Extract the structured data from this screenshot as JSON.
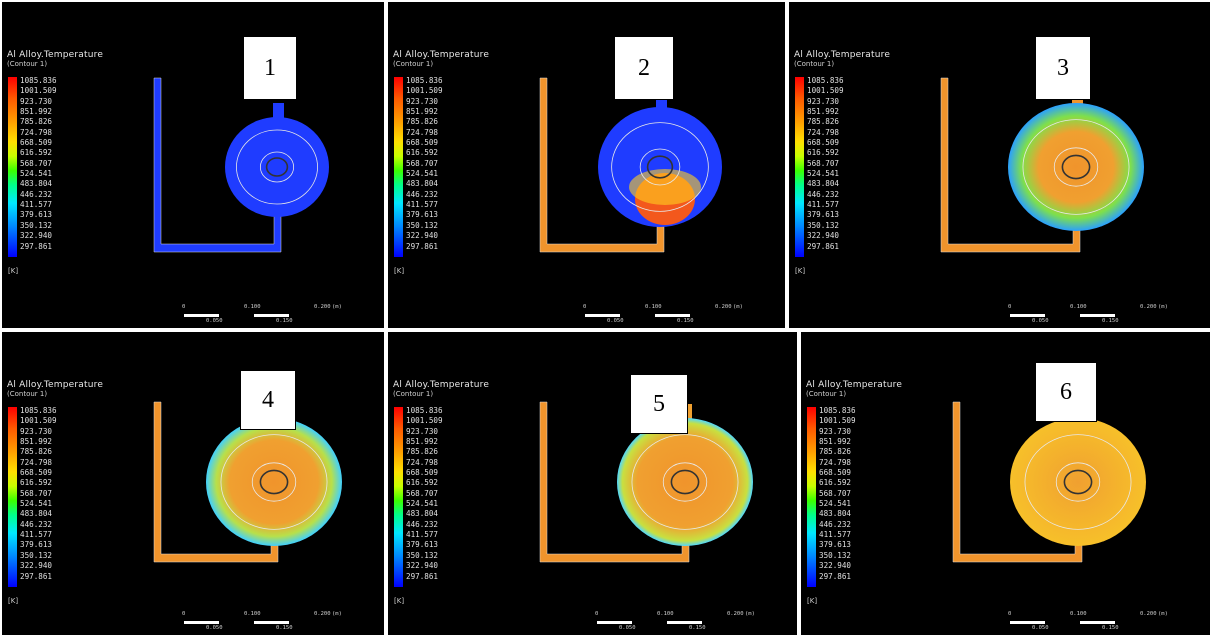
{
  "legend": {
    "title": "Al Alloy.Temperature",
    "subtitle": "(Contour 1)",
    "unit": "[K]",
    "values": [
      "1085.836",
      "1001.509",
      "923.730",
      "851.992",
      "785.826",
      "724.798",
      "668.509",
      "616.592",
      "568.707",
      "524.541",
      "483.804",
      "446.232",
      "411.577",
      "379.613",
      "350.132",
      "322.940",
      "297.861"
    ]
  },
  "scale_bar": {
    "top_labels": [
      "0",
      "0.100",
      "0.200"
    ],
    "bottom_labels": [
      "0.050",
      "0.150"
    ],
    "unit": "(m)"
  },
  "panels": [
    {
      "label": "1",
      "state": "runner-filling",
      "colors": {
        "die": "#1f3cff",
        "runner": "#1f3cff"
      }
    },
    {
      "label": "2",
      "state": "filling-start",
      "colors": {
        "die": "#1f3cff",
        "runner": "#f0942c"
      }
    },
    {
      "label": "3",
      "state": "half-filled",
      "colors": {
        "die": "#f0942c",
        "runner": "#f0942c"
      }
    },
    {
      "label": "4",
      "state": "mostly-filled",
      "colors": {
        "die": "#f0942c",
        "runner": "#f0942c"
      }
    },
    {
      "label": "5",
      "state": "nearly-filled",
      "colors": {
        "die": "#f0a030",
        "runner": "#f0942c"
      }
    },
    {
      "label": "6",
      "state": "filled",
      "colors": {
        "die": "#f5b828",
        "runner": "#f0942c"
      }
    }
  ]
}
